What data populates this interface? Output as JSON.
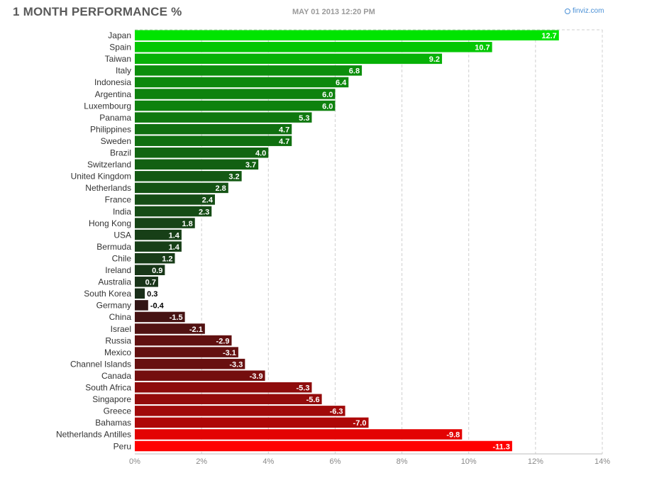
{
  "header": {
    "title": "1 MONTH PERFORMANCE %",
    "timestamp": "MAY 01 2013 12:20 PM",
    "brand": "finviz.com"
  },
  "colors": {
    "positive_max": "#00e400",
    "positive_min": "#1a2a1a",
    "negative_min": "#2a1616",
    "negative_max": "#ff0000",
    "grid": "#cfcfcf",
    "axis_text": "#888888",
    "label_text": "#333333",
    "brand": "#4a90d6"
  },
  "chart_data": {
    "type": "bar",
    "orientation": "horizontal",
    "title": "1 MONTH PERFORMANCE %",
    "xlim": [
      0,
      14
    ],
    "xticks": [
      "0%",
      "2%",
      "4%",
      "6%",
      "8%",
      "10%",
      "12%",
      "14%"
    ],
    "grid": true,
    "categories": [
      "Japan",
      "Spain",
      "Taiwan",
      "Italy",
      "Indonesia",
      "Argentina",
      "Luxembourg",
      "Panama",
      "Philippines",
      "Sweden",
      "Brazil",
      "Switzerland",
      "United Kingdom",
      "Netherlands",
      "France",
      "India",
      "Hong Kong",
      "USA",
      "Bermuda",
      "Chile",
      "Ireland",
      "Australia",
      "South Korea",
      "Germany",
      "China",
      "Israel",
      "Russia",
      "Mexico",
      "Channel Islands",
      "Canada",
      "South Africa",
      "Singapore",
      "Greece",
      "Bahamas",
      "Netherlands Antilles",
      "Peru"
    ],
    "values": [
      12.7,
      10.7,
      9.2,
      6.8,
      6.4,
      6.0,
      6.0,
      5.3,
      4.7,
      4.7,
      4.0,
      3.7,
      3.2,
      2.8,
      2.4,
      2.3,
      1.8,
      1.4,
      1.4,
      1.2,
      0.9,
      0.7,
      0.3,
      -0.4,
      -1.5,
      -2.1,
      -2.9,
      -3.1,
      -3.3,
      -3.9,
      -5.3,
      -5.6,
      -6.3,
      -7.0,
      -9.8,
      -11.3
    ],
    "value_labels": [
      "12.7",
      "10.7",
      "9.2",
      "6.8",
      "6.4",
      "6.0",
      "6.0",
      "5.3",
      "4.7",
      "4.7",
      "4.0",
      "3.7",
      "3.2",
      "2.8",
      "2.4",
      "2.3",
      "1.8",
      "1.4",
      "1.4",
      "1.2",
      "0.9",
      "0.7",
      "0.3",
      "-0.4",
      "-1.5",
      "-2.1",
      "-2.9",
      "-3.1",
      "-3.3",
      "-3.9",
      "-5.3",
      "-5.6",
      "-6.3",
      "-7.0",
      "-9.8",
      "-11.3"
    ]
  }
}
